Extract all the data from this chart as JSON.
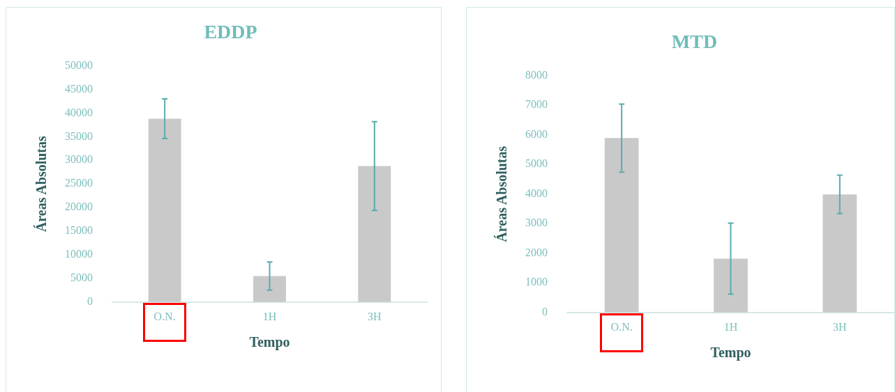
{
  "chart_data": [
    {
      "type": "bar",
      "title": "EDDP",
      "xlabel": "Tempo",
      "ylabel": "Áreas Absolutas",
      "categories": [
        "O.N.",
        "1H",
        "3H"
      ],
      "values": [
        38800,
        5500,
        28800
      ],
      "errors": [
        4200,
        3000,
        9400
      ],
      "color": "#c9c9c9",
      "ylim": [
        0,
        50000
      ],
      "yticks": [
        0,
        5000,
        10000,
        15000,
        20000,
        25000,
        30000,
        35000,
        40000,
        45000,
        50000
      ]
    },
    {
      "type": "bar",
      "title": "MTD",
      "xlabel": "Tempo",
      "ylabel": "Áreas Absolutas",
      "categories": [
        "O.N.",
        "1H",
        "3H"
      ],
      "values": [
        5890,
        1820,
        3990
      ],
      "errors": [
        1150,
        1200,
        650
      ],
      "color": "#c9c9c9",
      "ylim": [
        0,
        8000
      ],
      "yticks": [
        0,
        1000,
        2000,
        3000,
        4000,
        5000,
        6000,
        7000,
        8000
      ]
    }
  ]
}
